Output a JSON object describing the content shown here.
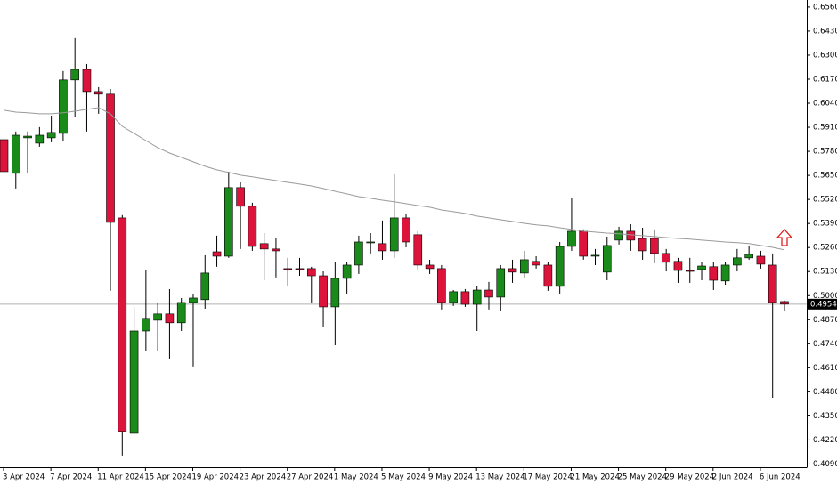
{
  "chart_data": {
    "type": "candlestick",
    "categories": [
      "3 Apr 2024",
      null,
      null,
      null,
      "7 Apr 2024",
      null,
      null,
      null,
      "11 Apr 2024",
      null,
      null,
      null,
      "15 Apr 2024",
      null,
      null,
      null,
      "19 Apr 2024",
      null,
      null,
      null,
      "23 Apr 2024",
      null,
      null,
      null,
      "27 Apr 2024",
      null,
      null,
      null,
      "1 May 2024",
      null,
      null,
      null,
      "5 May 2024",
      null,
      null,
      null,
      "9 May 2024",
      null,
      null,
      null,
      "13 May 2024",
      null,
      null,
      null,
      "17 May 2024",
      null,
      null,
      null,
      "21 May 2024",
      null,
      null,
      null,
      "25 May 2024",
      null,
      null,
      null,
      "29 May 2024",
      null,
      null,
      null,
      "2 Jun 2024",
      null,
      null,
      null,
      "6 Jun 2024",
      null,
      null
    ],
    "open": [
      0.5843,
      0.5661,
      0.5853,
      0.5824,
      0.5853,
      0.5877,
      0.6166,
      0.6223,
      0.6103,
      0.6089,
      0.542,
      0.4256,
      0.4809,
      0.4867,
      0.4901,
      0.4853,
      0.4963,
      0.4978,
      0.5237,
      0.5213,
      0.5584,
      0.5483,
      0.5281,
      0.5252,
      0.5146,
      0.5146,
      0.5146,
      0.5107,
      0.4939,
      0.5093,
      0.5165,
      0.529,
      0.5281,
      0.5242,
      0.542,
      0.5329,
      0.5165,
      0.5146,
      0.4963,
      0.5021,
      0.4953,
      0.503,
      0.4992,
      0.5146,
      0.5122,
      0.5185,
      0.5165,
      0.505,
      0.5266,
      0.5348,
      0.5213,
      0.5127,
      0.53,
      0.5348,
      0.5309,
      0.5309,
      0.5228,
      0.5185,
      0.5136,
      0.5141,
      0.5156,
      0.5079,
      0.5165,
      0.5204,
      0.5213,
      0.5165,
      0.4968
    ],
    "high": [
      0.5877,
      0.5887,
      0.5887,
      0.5911,
      0.5973,
      0.6214,
      0.6392,
      0.6252,
      0.6127,
      0.6117,
      0.5435,
      0.4939,
      0.5141,
      0.4963,
      0.5035,
      0.4987,
      0.5011,
      0.5218,
      0.5324,
      0.567,
      0.5612,
      0.5502,
      0.5338,
      0.5309,
      0.5204,
      0.5204,
      0.5156,
      0.5131,
      0.518,
      0.518,
      0.5324,
      0.5338,
      0.5406,
      0.5656,
      0.5444,
      0.5348,
      0.5194,
      0.5165,
      0.503,
      0.5035,
      0.505,
      0.5074,
      0.5165,
      0.5194,
      0.5242,
      0.5213,
      0.518,
      0.529,
      0.5526,
      0.5358,
      0.5252,
      0.5319,
      0.5372,
      0.5386,
      0.5367,
      0.5358,
      0.5252,
      0.5204,
      0.5204,
      0.518,
      0.518,
      0.518,
      0.5252,
      0.5271,
      0.5242,
      0.5228,
      0.4973
    ],
    "low": [
      0.5627,
      0.5579,
      0.5661,
      0.5805,
      0.5829,
      0.5838,
      0.5964,
      0.5887,
      0.5983,
      0.5026,
      0.4136,
      0.4256,
      0.4699,
      0.4699,
      0.466,
      0.4809,
      0.4617,
      0.4929,
      0.5156,
      0.5204,
      0.5252,
      0.5242,
      0.5083,
      0.5098,
      0.505,
      0.5107,
      0.4963,
      0.4828,
      0.4732,
      0.5011,
      0.5117,
      0.5228,
      0.5194,
      0.5204,
      0.5261,
      0.5141,
      0.5117,
      0.4925,
      0.4944,
      0.4939,
      0.4809,
      0.4925,
      0.4915,
      0.5069,
      0.5093,
      0.5146,
      0.5026,
      0.5011,
      0.5242,
      0.5194,
      0.5165,
      0.5083,
      0.5276,
      0.5242,
      0.5194,
      0.5175,
      0.5131,
      0.5069,
      0.5069,
      0.5083,
      0.503,
      0.5059,
      0.5131,
      0.5194,
      0.5146,
      0.4448,
      0.4915
    ],
    "close": [
      0.567,
      0.5867,
      0.5862,
      0.5867,
      0.5882,
      0.6166,
      0.6223,
      0.6103,
      0.6089,
      0.5396,
      0.4266,
      0.4809,
      0.4877,
      0.4901,
      0.4853,
      0.4963,
      0.4987,
      0.5122,
      0.5213,
      0.5584,
      0.5483,
      0.5266,
      0.5252,
      0.5242,
      0.5141,
      0.5141,
      0.5107,
      0.4939,
      0.5093,
      0.5165,
      0.529,
      0.529,
      0.5242,
      0.542,
      0.529,
      0.5165,
      0.5146,
      0.4963,
      0.5021,
      0.4953,
      0.503,
      0.4992,
      0.5146,
      0.5127,
      0.5194,
      0.5165,
      0.505,
      0.5266,
      0.5348,
      0.5213,
      0.5218,
      0.5271,
      0.5348,
      0.53,
      0.5242,
      0.5228,
      0.518,
      0.5136,
      0.5131,
      0.516,
      0.5083,
      0.5165,
      0.5204,
      0.5223,
      0.517,
      0.4963,
      0.4954
    ],
    "up_color": "#1a8a1a",
    "down_color": "#dc143c",
    "moving_average": {
      "color": "#9a9a9a",
      "values": [
        0.6002,
        0.5992,
        0.5988,
        0.5983,
        0.5983,
        0.5988,
        0.5997,
        0.6007,
        0.6016,
        0.5983,
        0.5915,
        0.5877,
        0.5838,
        0.58,
        0.5771,
        0.5747,
        0.5723,
        0.5699,
        0.568,
        0.5666,
        0.5651,
        0.5642,
        0.5632,
        0.5622,
        0.5612,
        0.5603,
        0.5593,
        0.5579,
        0.5564,
        0.555,
        0.5535,
        0.5526,
        0.5516,
        0.5507,
        0.5497,
        0.5487,
        0.5478,
        0.5463,
        0.5454,
        0.5444,
        0.543,
        0.542,
        0.541,
        0.5401,
        0.5391,
        0.5382,
        0.5377,
        0.5367,
        0.5358,
        0.5348,
        0.5343,
        0.5338,
        0.5334,
        0.5329,
        0.5324,
        0.5319,
        0.5314,
        0.5309,
        0.5305,
        0.53,
        0.5295,
        0.529,
        0.5286,
        0.5281,
        0.5271,
        0.5261,
        0.5247
      ]
    },
    "last_price": 0.4954,
    "last_price_color": "#b0b0b0",
    "ylim": [
      0.4073,
      0.6598
    ],
    "yticks": [
      {
        "value": 0.656,
        "label": "0.6560"
      },
      {
        "value": 0.643,
        "label": "0.6430"
      },
      {
        "value": 0.63,
        "label": "0.6300"
      },
      {
        "value": 0.617,
        "label": "0.6170"
      },
      {
        "value": 0.604,
        "label": "0.6040"
      },
      {
        "value": 0.591,
        "label": "0.5910"
      },
      {
        "value": 0.578,
        "label": "0.5780"
      },
      {
        "value": 0.565,
        "label": "0.5650"
      },
      {
        "value": 0.552,
        "label": "0.5520"
      },
      {
        "value": 0.539,
        "label": "0.5390"
      },
      {
        "value": 0.526,
        "label": "0.5260"
      },
      {
        "value": 0.513,
        "label": "0.5130"
      },
      {
        "value": 0.5,
        "label": "0.5000"
      },
      {
        "value": 0.487,
        "label": "0.4870"
      },
      {
        "value": 0.474,
        "label": "0.4740"
      },
      {
        "value": 0.461,
        "label": "0.4610"
      },
      {
        "value": 0.448,
        "label": "0.4480"
      },
      {
        "value": 0.435,
        "label": "0.4350"
      },
      {
        "value": 0.422,
        "label": "0.4220"
      },
      {
        "value": 0.409,
        "label": "0.4090"
      }
    ],
    "grid": false
  }
}
